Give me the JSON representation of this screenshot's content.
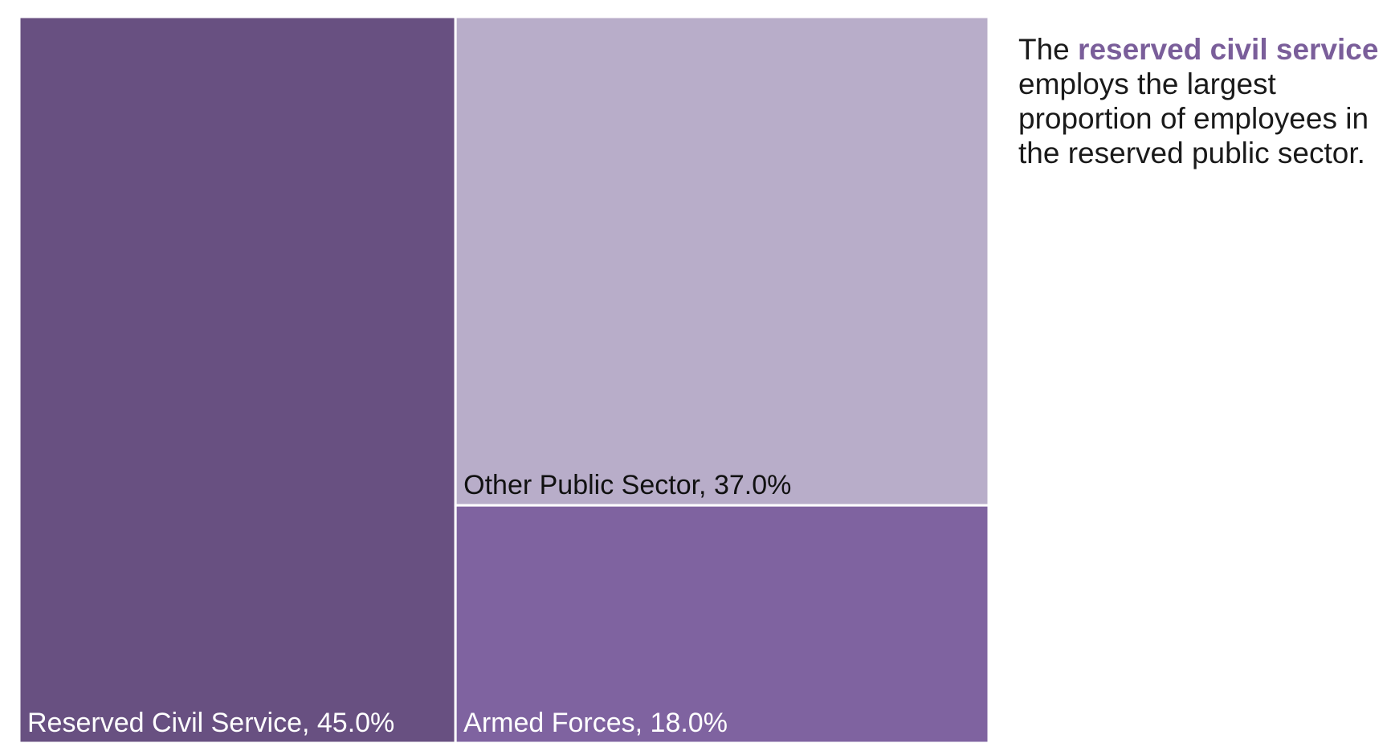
{
  "chart_data": {
    "type": "treemap",
    "categories": [
      "Reserved Civil Service",
      "Other Public Sector",
      "Armed Forces"
    ],
    "values": [
      45.0,
      37.0,
      18.0
    ],
    "unit": "%",
    "labels": [
      "Reserved Civil Service, 45.0%",
      "Other Public Sector, 37.0%",
      "Armed Forces, 18.0%"
    ],
    "colors": [
      "#685081",
      "#b8adc9",
      "#7f63a0"
    ],
    "label_colors": [
      "#ffffff",
      "#111111",
      "#ffffff"
    ]
  },
  "annotation": {
    "prefix": "The ",
    "highlight": "reserved civil service",
    "line2": "employs the largest",
    "line3": "proportion of employees in",
    "line4": "the reserved public sector.",
    "highlight_color": "#7a5e9a"
  }
}
